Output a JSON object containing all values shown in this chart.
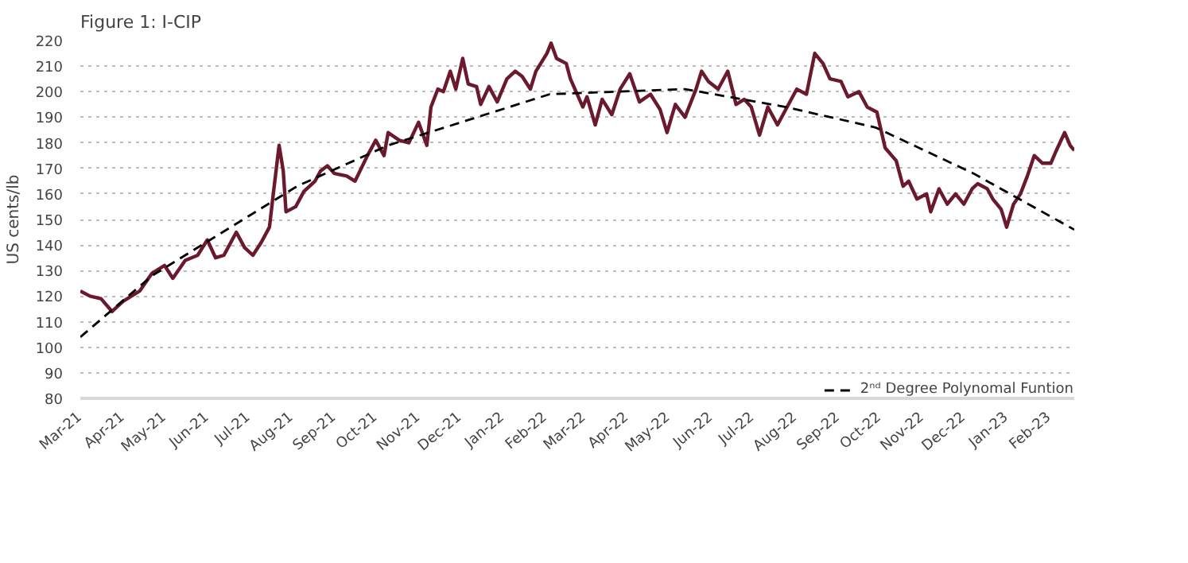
{
  "chart_data": {
    "type": "line",
    "title": "Figure 1: I-CIP",
    "ylabel": "US cents/lb",
    "xlim": [
      "2021-03-01",
      "2023-02-19"
    ],
    "xticks": [
      {
        "value": "2021-03-01",
        "label": "Mar-21"
      },
      {
        "value": "2021-04-01",
        "label": "Apr-21"
      },
      {
        "value": "2021-05-01",
        "label": "May-21"
      },
      {
        "value": "2021-06-01",
        "label": "Jun-21"
      },
      {
        "value": "2021-07-01",
        "label": "Jul-21"
      },
      {
        "value": "2021-08-01",
        "label": "Aug-21"
      },
      {
        "value": "2021-09-01",
        "label": "Sep-21"
      },
      {
        "value": "2021-10-01",
        "label": "Oct-21"
      },
      {
        "value": "2021-11-01",
        "label": "Nov-21"
      },
      {
        "value": "2021-12-01",
        "label": "Dec-21"
      },
      {
        "value": "2022-01-01",
        "label": "Jan-22"
      },
      {
        "value": "2022-02-01",
        "label": "Feb-22"
      },
      {
        "value": "2022-03-01",
        "label": "Mar-22"
      },
      {
        "value": "2022-04-01",
        "label": "Apr-22"
      },
      {
        "value": "2022-05-01",
        "label": "May-22"
      },
      {
        "value": "2022-06-01",
        "label": "Jun-22"
      },
      {
        "value": "2022-07-01",
        "label": "Jul-22"
      },
      {
        "value": "2022-08-01",
        "label": "Aug-22"
      },
      {
        "value": "2022-09-01",
        "label": "Sep-22"
      },
      {
        "value": "2022-10-01",
        "label": "Oct-22"
      },
      {
        "value": "2022-11-01",
        "label": "Nov-22"
      },
      {
        "value": "2022-12-01",
        "label": "Dec-22"
      },
      {
        "value": "2023-01-01",
        "label": "Jan-23"
      },
      {
        "value": "2023-02-01",
        "label": "Feb-23"
      }
    ],
    "ylim": [
      80,
      220
    ],
    "yticks": [
      80,
      90,
      100,
      110,
      120,
      130,
      140,
      150,
      160,
      170,
      180,
      190,
      200,
      210,
      220
    ],
    "grid": "y",
    "legend": "bottom right",
    "marker": "none",
    "series": [
      {
        "color": "#6b1a2e",
        "line_style": "solid",
        "x": [
          "2021-03-01",
          "2021-03-08",
          "2021-03-16",
          "2021-03-24",
          "2021-04-01",
          "2021-04-13",
          "2021-04-22",
          "2021-05-01",
          "2021-05-07",
          "2021-05-16",
          "2021-05-25",
          "2021-06-01",
          "2021-06-07",
          "2021-06-13",
          "2021-06-22",
          "2021-06-28",
          "2021-07-04",
          "2021-07-10",
          "2021-07-16",
          "2021-07-19",
          "2021-07-23",
          "2021-07-26",
          "2021-07-28",
          "2021-08-04",
          "2021-08-10",
          "2021-08-18",
          "2021-08-22",
          "2021-08-27",
          "2021-09-01",
          "2021-09-10",
          "2021-09-16",
          "2021-09-25",
          "2021-10-01",
          "2021-10-07",
          "2021-10-10",
          "2021-10-18",
          "2021-10-25",
          "2021-11-01",
          "2021-11-07",
          "2021-11-10",
          "2021-11-15",
          "2021-11-19",
          "2021-11-24",
          "2021-11-28",
          "2021-12-03",
          "2021-12-07",
          "2021-12-13",
          "2021-12-16",
          "2021-12-22",
          "2021-12-28",
          "2022-01-04",
          "2022-01-10",
          "2022-01-15",
          "2022-01-21",
          "2022-01-25",
          "2022-02-02",
          "2022-02-05",
          "2022-02-09",
          "2022-02-16",
          "2022-02-19",
          "2022-02-28",
          "2022-03-03",
          "2022-03-09",
          "2022-03-14",
          "2022-03-21",
          "2022-03-27",
          "2022-04-03",
          "2022-04-10",
          "2022-04-18",
          "2022-04-25",
          "2022-04-30",
          "2022-05-06",
          "2022-05-13",
          "2022-05-21",
          "2022-05-25",
          "2022-05-30",
          "2022-06-06",
          "2022-06-13",
          "2022-06-19",
          "2022-06-25",
          "2022-06-30",
          "2022-07-06",
          "2022-07-12",
          "2022-07-19",
          "2022-07-26",
          "2022-08-02",
          "2022-08-09",
          "2022-08-15",
          "2022-08-21",
          "2022-08-26",
          "2022-09-03",
          "2022-09-08",
          "2022-09-16",
          "2022-09-22",
          "2022-09-29",
          "2022-10-05",
          "2022-10-13",
          "2022-10-18",
          "2022-10-22",
          "2022-10-28",
          "2022-11-04",
          "2022-11-07",
          "2022-11-13",
          "2022-11-19",
          "2022-11-25",
          "2022-12-01",
          "2022-12-07",
          "2022-12-11",
          "2022-12-18",
          "2022-12-22",
          "2022-12-28",
          "2023-01-01",
          "2023-01-06",
          "2023-01-11",
          "2023-01-16",
          "2023-01-21",
          "2023-01-27",
          "2023-02-02",
          "2023-02-06",
          "2023-02-12",
          "2023-02-16",
          "2023-02-19"
        ],
        "values": [
          122,
          120,
          119,
          114,
          118,
          122,
          129,
          132,
          127,
          134,
          136,
          142,
          135,
          136,
          145,
          139,
          136,
          141,
          147,
          161,
          179,
          169,
          153,
          155,
          161,
          165,
          169,
          171,
          168,
          167,
          165,
          175,
          181,
          175,
          184,
          181,
          180,
          188,
          179,
          194,
          201,
          200,
          208,
          201,
          213,
          203,
          202,
          195,
          202,
          196,
          205,
          208,
          206,
          201,
          208,
          215,
          219,
          213,
          211,
          205,
          194,
          198,
          187,
          197,
          191,
          201,
          207,
          196,
          199,
          193,
          184,
          195,
          190,
          201,
          208,
          204,
          201,
          208,
          195,
          197,
          194,
          183,
          194,
          187,
          194,
          201,
          199,
          215,
          211,
          205,
          204,
          198,
          200,
          194,
          192,
          178,
          173,
          163,
          165,
          158,
          160,
          153,
          162,
          156,
          160,
          156,
          162,
          164,
          162,
          158,
          154,
          147,
          156,
          160,
          167,
          175,
          172,
          172,
          177,
          184,
          179,
          177
        ]
      },
      {
        "name": "2ⁿᵈ Degree Polynomal Funtion",
        "color": "#000000",
        "line_style": "dashed",
        "x": [
          "2021-03-01",
          "2021-04-22",
          "2021-08-05",
          "2021-10-10",
          "2022-02-04",
          "2022-05-13",
          "2022-07-25",
          "2022-09-28",
          "2022-12-08",
          "2023-02-19"
        ],
        "values": [
          104,
          128,
          163,
          179,
          199,
          201,
          194,
          186,
          168,
          146
        ]
      }
    ]
  }
}
